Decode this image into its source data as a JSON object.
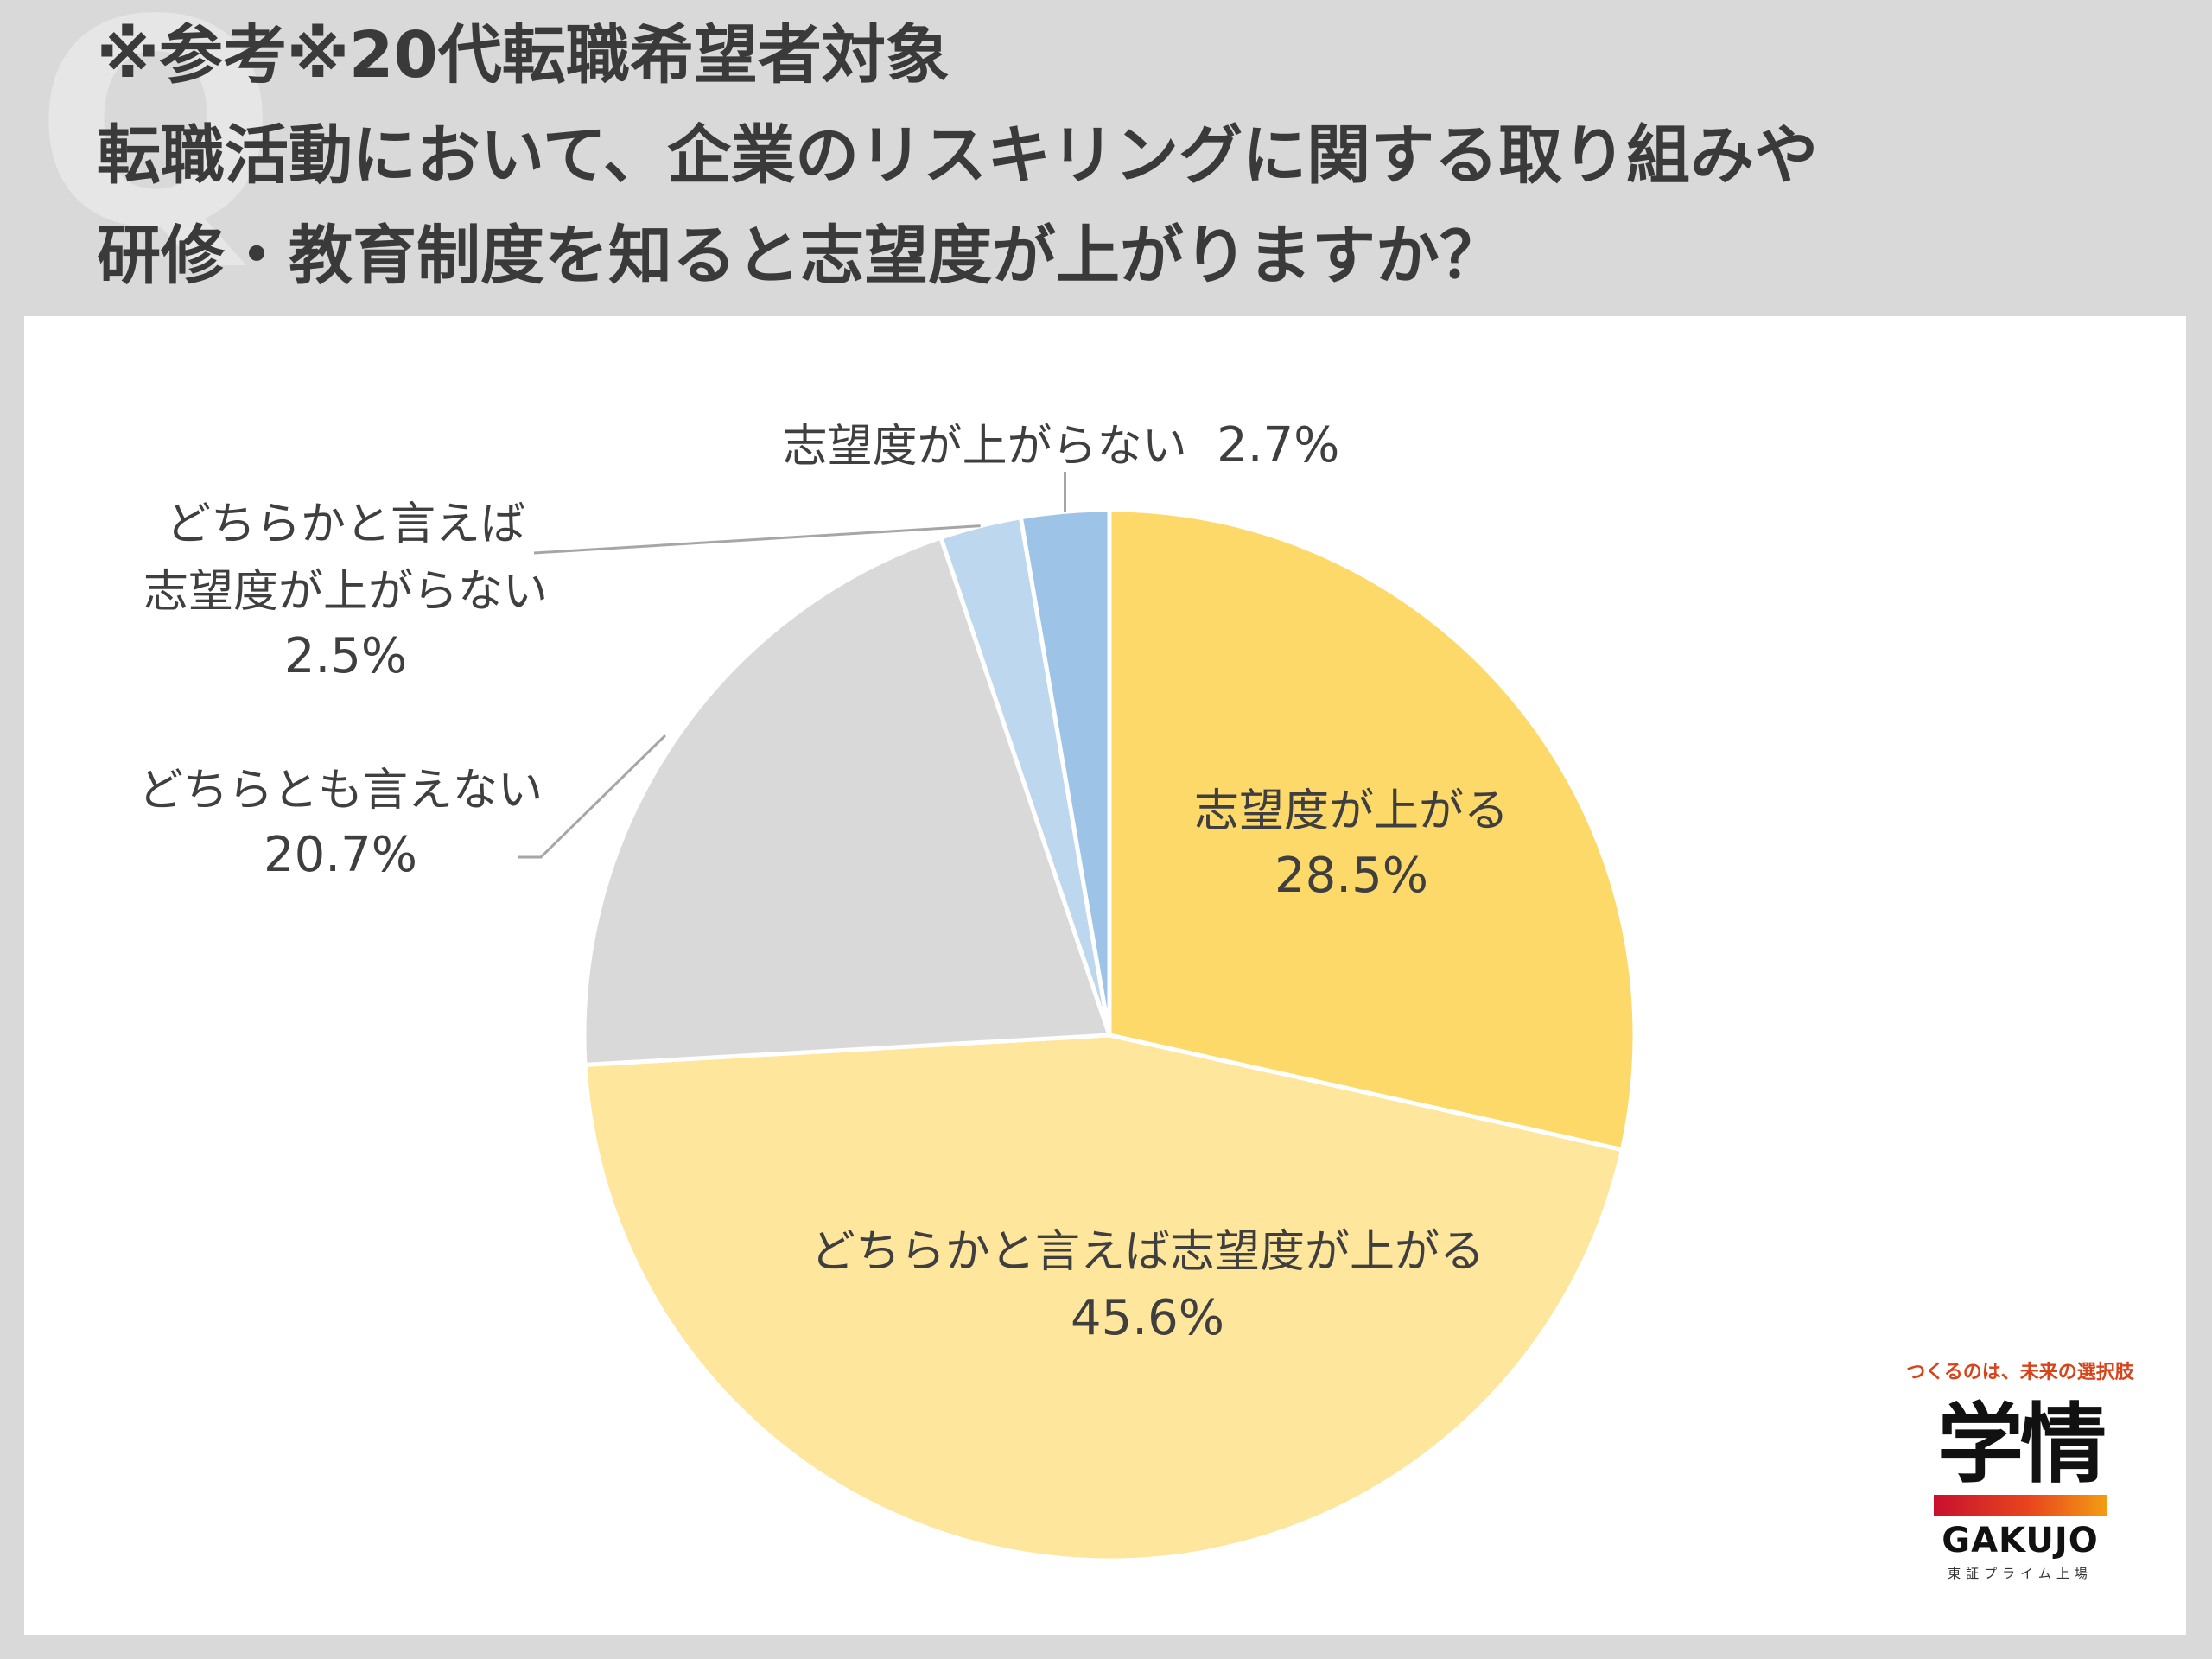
{
  "page": {
    "background_glyph": "Q",
    "title_lines": [
      "※参考※20代転職希望者対象",
      "転職活動において、企業のリスキリングに関する取り組みや",
      "研修・教育制度を知ると志望度が上がりますか？"
    ]
  },
  "chart_data": {
    "type": "pie",
    "title": "",
    "start": "12 o'clock",
    "direction": "clockwise",
    "slices": [
      {
        "label": "志望度が上がる",
        "value": 28.5,
        "value_label": "28.5%",
        "color": "#fdd96a",
        "label_position": "inside"
      },
      {
        "label": "どちらかと言えば志望度が上がる",
        "value": 45.6,
        "value_label": "45.6%",
        "color": "#fee69d",
        "label_position": "inside"
      },
      {
        "label": "どちらとも言えない",
        "value": 20.7,
        "value_label": "20.7%",
        "color": "#d9d9d9",
        "label_position": "outside-left"
      },
      {
        "label": "どちらかと言えば志望度が上がらない",
        "label_lines": [
          "どちらかと言えば",
          "志望度が上がらない"
        ],
        "value": 2.5,
        "value_label": "2.5%",
        "color": "#bdd7ee",
        "label_position": "outside-top-left"
      },
      {
        "label": "志望度が上がらない",
        "value": 2.7,
        "value_label": "2.7%",
        "color": "#9dc3e6",
        "label_position": "outside-top"
      }
    ]
  },
  "logo": {
    "tagline": "つくるのは、未来の選択肢",
    "mark": "学情",
    "name": "GAKUJO",
    "sub": "東証プライム上場"
  }
}
